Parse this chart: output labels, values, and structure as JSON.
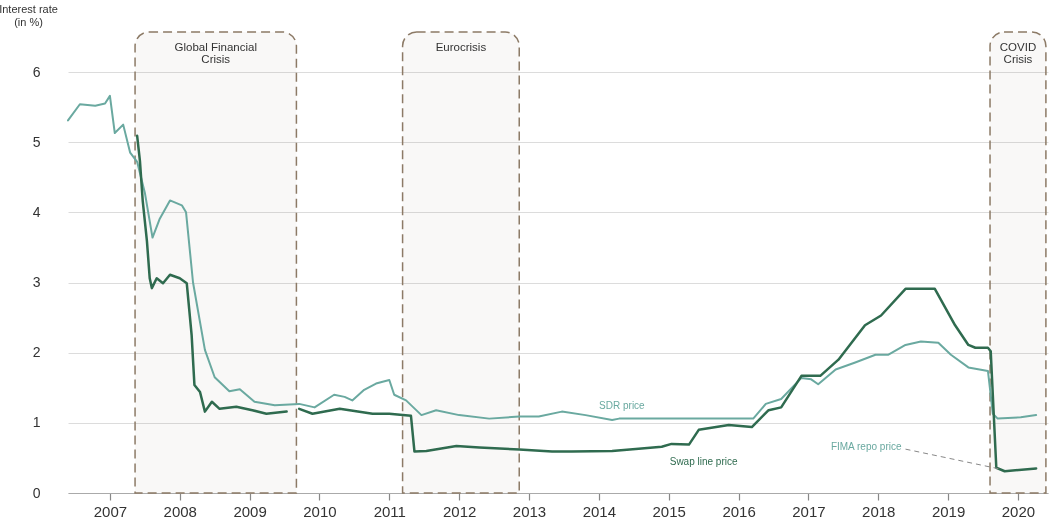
{
  "chart_data": {
    "type": "line",
    "ylabel": "Interest rate\n(in %)",
    "xlim": [
      2006.9,
      2020.93
    ],
    "ylim": [
      0,
      6
    ],
    "yticks": [
      0,
      1,
      2,
      3,
      4,
      5,
      6
    ],
    "xticks": [
      {
        "value": 2007.5,
        "label": "2007"
      },
      {
        "value": 2008.5,
        "label": "2008"
      },
      {
        "value": 2009.5,
        "label": "2009"
      },
      {
        "value": 2010.5,
        "label": "2010"
      },
      {
        "value": 2011.5,
        "label": "2011"
      },
      {
        "value": 2012.5,
        "label": "2012"
      },
      {
        "value": 2013.5,
        "label": "2013"
      },
      {
        "value": 2014.5,
        "label": "2014"
      },
      {
        "value": 2015.5,
        "label": "2015"
      },
      {
        "value": 2016.5,
        "label": "2016"
      },
      {
        "value": 2017.5,
        "label": "2017"
      },
      {
        "value": 2018.5,
        "label": "2018"
      },
      {
        "value": 2019.5,
        "label": "2019"
      },
      {
        "value": 2020.5,
        "label": "2020"
      }
    ],
    "grid": "y",
    "series": [
      {
        "name": "SDR price",
        "color": "#6aa9a0",
        "x": [
          2006.9,
          2007.07,
          2007.29,
          2007.43,
          2007.5,
          2007.57,
          2007.69,
          2007.79,
          2007.89,
          2008.0,
          2008.11,
          2008.21,
          2008.36,
          2008.53,
          2008.59,
          2008.69,
          2008.86,
          2009.0,
          2009.21,
          2009.36,
          2009.57,
          2009.86,
          2010.21,
          2010.43,
          2010.71,
          2010.86,
          2010.97,
          2011.14,
          2011.31,
          2011.5,
          2011.57,
          2011.74,
          2011.96,
          2012.17,
          2012.5,
          2012.93,
          2013.36,
          2013.64,
          2013.97,
          2014.31,
          2014.69,
          2014.79,
          2016.71,
          2016.89,
          2017.11,
          2017.4,
          2017.54,
          2017.64,
          2017.89,
          2018.17,
          2018.46,
          2018.64,
          2018.89,
          2019.11,
          2019.36,
          2019.54,
          2019.79,
          2020.07,
          2020.14,
          2020.21,
          2020.54,
          2020.76
        ],
        "values": [
          5.31,
          5.54,
          5.52,
          5.55,
          5.66,
          5.13,
          5.25,
          4.85,
          4.72,
          4.28,
          3.64,
          3.9,
          4.17,
          4.1,
          4.0,
          3.0,
          2.04,
          1.65,
          1.45,
          1.48,
          1.3,
          1.25,
          1.27,
          1.22,
          1.4,
          1.37,
          1.32,
          1.47,
          1.56,
          1.61,
          1.4,
          1.32,
          1.11,
          1.18,
          1.11,
          1.06,
          1.09,
          1.09,
          1.16,
          1.11,
          1.04,
          1.06,
          1.06,
          1.27,
          1.34,
          1.64,
          1.62,
          1.55,
          1.76,
          1.86,
          1.97,
          1.97,
          2.11,
          2.16,
          2.14,
          1.97,
          1.79,
          1.74,
          1.13,
          1.06,
          1.08,
          1.11
        ]
      },
      {
        "name": "Swap line price",
        "color": "#2f6b4f",
        "x": [
          2007.89,
          2007.93,
          2007.97,
          2008.03,
          2008.07,
          2008.1,
          2008.17,
          2008.26,
          2008.36,
          2008.5,
          2008.6,
          2008.67,
          2008.71,
          2008.79,
          2008.86,
          2008.96,
          2009.07,
          2009.31,
          2009.54,
          2009.74,
          2010.03,
          2010.1,
          2010.21,
          2010.4,
          2010.79,
          2011.26,
          2011.5,
          2011.81,
          2011.86,
          2012.03,
          2012.46,
          2012.79,
          2013.36,
          2013.83,
          2014.11,
          2014.69,
          2015.07,
          2015.4,
          2015.54,
          2015.79,
          2015.93,
          2016.36,
          2016.69,
          2016.93,
          2017.11,
          2017.4,
          2017.67,
          2017.93,
          2018.31,
          2018.54,
          2018.89,
          2019.31,
          2019.6,
          2019.79,
          2019.89,
          2020.07,
          2020.11,
          2020.19,
          2020.31,
          2020.76
        ],
        "values": [
          5.09,
          4.73,
          4.16,
          3.59,
          3.06,
          2.92,
          3.06,
          2.99,
          3.11,
          3.06,
          2.99,
          2.25,
          1.54,
          1.44,
          1.16,
          1.3,
          1.2,
          1.23,
          1.18,
          1.13,
          1.16,
          null,
          1.2,
          1.13,
          1.2,
          1.13,
          1.13,
          1.1,
          0.59,
          0.6,
          0.67,
          0.65,
          0.62,
          0.59,
          0.59,
          0.6,
          0.63,
          0.66,
          0.7,
          0.69,
          0.9,
          0.97,
          0.94,
          1.18,
          1.22,
          1.67,
          1.67,
          1.9,
          2.39,
          2.53,
          2.91,
          2.91,
          2.39,
          2.11,
          2.07,
          2.07,
          2.02,
          0.36,
          0.31,
          0.35
        ]
      }
    ],
    "bands": [
      {
        "axis": "x",
        "from": 2007.86,
        "to": 2010.17,
        "label": "Global Financial\nCrisis",
        "color": "#8c7a66"
      },
      {
        "axis": "x",
        "from": 2011.69,
        "to": 2013.36,
        "label": "Eurocrisis",
        "color": "#8c7a66"
      },
      {
        "axis": "x",
        "from": 2020.1,
        "to": 2020.9,
        "label": "COVID\nCrisis",
        "color": "#8c7a66"
      }
    ],
    "annotations": [
      {
        "text": "FIMA repo price",
        "x": 2020.25,
        "y": 0.34
      }
    ]
  }
}
